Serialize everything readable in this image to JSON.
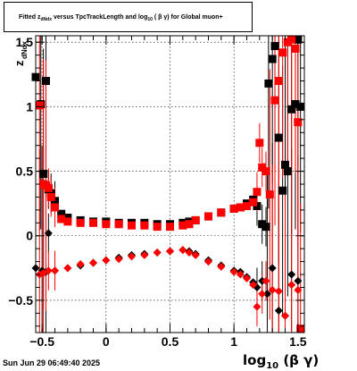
{
  "title": {
    "prefix": "Fitted  z",
    "sub1": "dNdx",
    "middle": "  versus TpcTrackLength and log",
    "sub2": "10",
    "suffix": " ( β γ) for Global muon+"
  },
  "timestamp": "Sun Jun 29 06:49:40 2025",
  "axis_labels": {
    "x_main": "log",
    "x_sub": "10",
    "x_tail": " (β γ)",
    "y_main": "z",
    "y_sub": "dNdx"
  },
  "colors": {
    "series_black": "#000000",
    "series_red": "#ff0000",
    "grid": "#000000",
    "frame": "#000000"
  },
  "chart_data": {
    "type": "scatter",
    "xlim": [
      -0.55,
      1.55
    ],
    "ylim": [
      -0.75,
      1.55
    ],
    "x_ticks": [
      -0.5,
      0,
      0.5,
      1,
      1.5
    ],
    "x_tick_labels": [
      "−0.5",
      "0",
      "0.5",
      "1",
      "1.5"
    ],
    "y_ticks": [
      -0.5,
      0,
      0.5,
      1,
      1.5
    ],
    "y_tick_labels": [
      "−0.5",
      "0",
      "0.5",
      "1",
      "1.5"
    ],
    "grid": true,
    "legend": "none",
    "series": [
      {
        "marker": "square",
        "color": "#000000",
        "x": [
          -0.55,
          -0.51,
          -0.49,
          -0.47,
          -0.45,
          -0.43,
          -0.4,
          -0.35,
          -0.3,
          -0.2,
          -0.1,
          0.0,
          0.1,
          0.2,
          0.3,
          0.4,
          0.5,
          0.6,
          0.65,
          0.7,
          0.8,
          0.9,
          1.0,
          1.05,
          1.1,
          1.15,
          1.18,
          1.22,
          1.25,
          1.27,
          1.3,
          1.32,
          1.35,
          1.38,
          1.4,
          1.42,
          1.45,
          1.48,
          1.5,
          1.52
        ],
        "y": [
          1.23,
          1.02,
          0.48,
          1.2,
          0.36,
          0.33,
          0.27,
          0.17,
          0.14,
          0.12,
          0.11,
          0.11,
          0.1,
          0.1,
          0.1,
          0.09,
          0.09,
          0.1,
          0.11,
          0.12,
          0.15,
          0.18,
          0.21,
          0.22,
          0.25,
          0.28,
          0.23,
          0.09,
          0.07,
          1.18,
          1.37,
          1.47,
          0.76,
          0.35,
          0.55,
          0.5,
          0.98,
          1.02,
          1.52,
          1.0
        ]
      },
      {
        "marker": "diamond",
        "color": "#000000",
        "x": [
          -0.55,
          -0.5,
          -0.47,
          -0.45,
          -0.4,
          -0.3,
          -0.2,
          -0.1,
          0.0,
          0.1,
          0.2,
          0.3,
          0.4,
          0.5,
          0.6,
          0.65,
          0.7,
          0.8,
          0.9,
          1.0,
          1.05,
          1.1,
          1.15,
          1.18,
          1.22,
          1.26,
          1.3,
          1.35,
          1.4,
          1.45,
          1.5
        ],
        "y": [
          -0.25,
          -0.27,
          -0.28,
          0.02,
          -0.27,
          -0.25,
          -0.23,
          -0.21,
          -0.19,
          -0.17,
          -0.15,
          -0.14,
          -0.13,
          -0.12,
          -0.11,
          -0.12,
          -0.14,
          -0.19,
          -0.23,
          -0.27,
          -0.28,
          -0.32,
          -0.36,
          -0.4,
          -0.35,
          -0.45,
          -0.25,
          -0.58,
          -0.62,
          -0.3,
          -0.35
        ]
      },
      {
        "marker": "square",
        "color": "#ff0000",
        "x": [
          -0.52,
          -0.49,
          -0.47,
          -0.45,
          -0.43,
          -0.4,
          -0.35,
          -0.3,
          -0.2,
          -0.1,
          0.0,
          0.1,
          0.2,
          0.3,
          0.4,
          0.5,
          0.6,
          0.65,
          0.7,
          0.8,
          0.9,
          1.0,
          1.05,
          1.1,
          1.15,
          1.18,
          1.2,
          1.22,
          1.25,
          1.28,
          1.32,
          1.35,
          1.38,
          1.42,
          1.45,
          1.48,
          1.5,
          1.52
        ],
        "y": [
          1.01,
          0.4,
          0.39,
          0.37,
          0.3,
          0.22,
          0.13,
          0.11,
          0.1,
          0.1,
          0.09,
          0.09,
          0.08,
          0.08,
          0.07,
          0.07,
          0.08,
          0.09,
          0.12,
          0.15,
          0.18,
          0.21,
          0.22,
          0.23,
          0.26,
          0.34,
          0.72,
          0.53,
          0.5,
          0.32,
          1.05,
          1.2,
          1.42,
          1.5,
          1.52,
          1.45,
          0.88,
          -0.72
        ]
      },
      {
        "marker": "diamond",
        "color": "#ff0000",
        "x": [
          -0.52,
          -0.49,
          -0.45,
          -0.4,
          -0.3,
          -0.2,
          -0.1,
          0.0,
          0.1,
          0.2,
          0.3,
          0.4,
          0.5,
          0.6,
          0.65,
          0.7,
          0.8,
          0.9,
          1.0,
          1.05,
          1.1,
          1.15,
          1.18,
          1.22,
          1.25,
          1.3,
          1.35,
          1.4,
          1.45,
          1.5
        ],
        "y": [
          -0.3,
          -0.29,
          -0.27,
          -0.27,
          -0.25,
          -0.22,
          -0.21,
          -0.19,
          -0.18,
          -0.16,
          -0.15,
          -0.13,
          -0.12,
          -0.11,
          -0.13,
          -0.15,
          -0.2,
          -0.24,
          -0.28,
          -0.3,
          -0.33,
          -0.38,
          -0.55,
          -0.45,
          -0.35,
          -0.42,
          -0.43,
          -0.62,
          -0.38,
          -0.42
        ]
      }
    ]
  }
}
